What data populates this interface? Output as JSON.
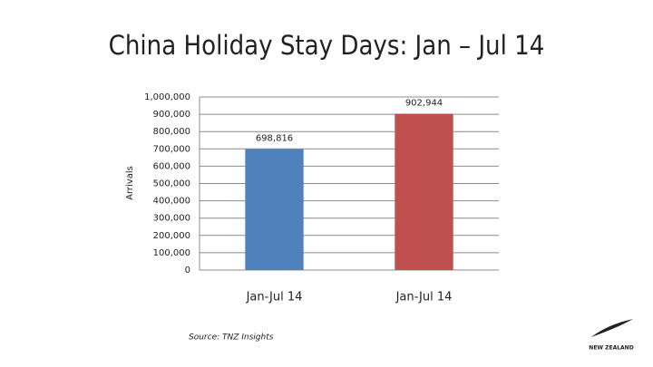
{
  "chart_data": {
    "type": "bar",
    "title": "China Holiday Stay Days: Jan – Jul 14",
    "y_label": "Arrivals",
    "categories": [
      "Jan-Jul 14",
      "Jan-Jul 14"
    ],
    "values": [
      698816,
      902944
    ],
    "value_labels": [
      "698,816",
      "902,944"
    ],
    "colors": [
      "#4f81bd",
      "#c0504d"
    ],
    "ylim": [
      0,
      1000000
    ],
    "yticks": [
      0,
      {
        "value": 100000,
        "label": "100,000"
      },
      {
        "value": 200000,
        "label": "200,000"
      },
      {
        "value": 300000,
        "label": "300,000"
      },
      {
        "value": 400000,
        "label": "400,000"
      },
      {
        "value": 500000,
        "label": "500,000"
      },
      {
        "value": 600000,
        "label": "600,000"
      },
      {
        "value": 700000,
        "label": "700,000"
      },
      {
        "value": 800000,
        "label": "800,000"
      },
      {
        "value": 900000,
        "label": "900,000"
      },
      {
        "value": 1000000,
        "label": "1,000,000"
      }
    ],
    "grid": true,
    "source": "Source: TNZ Insights",
    "logo": "NEW ZEALAND"
  }
}
